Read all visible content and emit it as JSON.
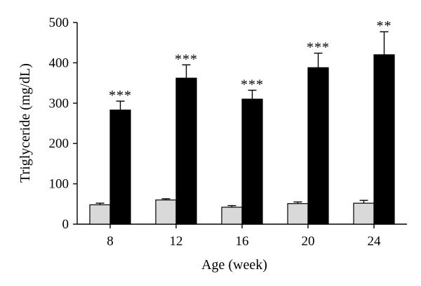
{
  "chart_data": {
    "type": "bar",
    "xlabel": "Age (week)",
    "ylabel": "Triglyceride (mg/dL)",
    "ylim": [
      0,
      500
    ],
    "yticks": [
      0,
      100,
      200,
      300,
      400,
      500
    ],
    "categories": [
      "8",
      "12",
      "16",
      "20",
      "24"
    ],
    "series": [
      {
        "color": "#d9d9d9",
        "values": [
          48,
          60,
          42,
          51,
          52
        ],
        "errors": [
          4,
          3,
          4,
          4,
          7
        ]
      },
      {
        "color": "#000000",
        "values": [
          283,
          362,
          310,
          388,
          420
        ],
        "errors": [
          22,
          33,
          22,
          36,
          57
        ]
      }
    ],
    "significance": [
      "***",
      "***",
      "***",
      "***",
      "**"
    ],
    "grid": false,
    "legend": "none"
  }
}
